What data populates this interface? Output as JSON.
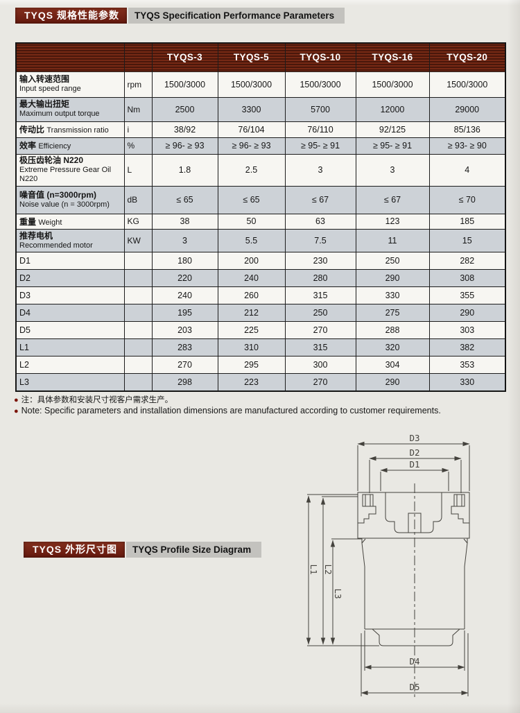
{
  "colors": {
    "accent_red": "#7c2415",
    "header_maroon": "#67200f",
    "row_shade": "#cdd2d7",
    "row_plain": "#f7f6f2",
    "title_gray": "#c3c2be",
    "paper": "#e9e8e3",
    "note_bullet_red": "#7c150b"
  },
  "section1": {
    "title_zh": "TYQS 规格性能参数",
    "title_en": "TYQS Specification Performance Parameters"
  },
  "section2": {
    "title_zh": "TYQS 外形尺寸图",
    "title_en": "TYQS Profile Size Diagram"
  },
  "notes": {
    "bullet": "●",
    "zh": "注：具体参数和安装尺寸视客户需求生产。",
    "en": "Note: Specific parameters and installation dimensions are manufactured according to customer requirements."
  },
  "table": {
    "columns": [
      "TYQS-3",
      "TYQS-5",
      "TYQS-10",
      "TYQS-16",
      "TYQS-20"
    ],
    "rows": [
      {
        "label_zh": "输入转速范围",
        "label_en": "Input speed range",
        "unit": "rpm",
        "layout": "stack",
        "shade": false,
        "values": [
          "1500/3000",
          "1500/3000",
          "1500/3000",
          "1500/3000",
          "1500/3000"
        ]
      },
      {
        "label_zh": "最大输出扭矩",
        "label_en": "Maximum output torque",
        "unit": "Nm",
        "layout": "stack",
        "shade": true,
        "values": [
          "2500",
          "3300",
          "5700",
          "12000",
          "29000"
        ]
      },
      {
        "label_zh": "传动比",
        "label_en": "Transmission ratio",
        "unit": "i",
        "layout": "inline",
        "shade": false,
        "values": [
          "38/92",
          "76/104",
          "76/110",
          "92/125",
          "85/136"
        ]
      },
      {
        "label_zh": "效率",
        "label_en": "Efficiency",
        "unit": "%",
        "layout": "inline",
        "shade": true,
        "values": [
          "≥ 96- ≥ 93",
          "≥ 96- ≥ 93",
          "≥ 95- ≥ 91",
          "≥ 95- ≥ 91",
          "≥ 93- ≥ 90"
        ]
      },
      {
        "label_zh": "极压齿轮油 N220",
        "label_en": "Extreme Pressure Gear Oil N220",
        "unit": "L",
        "layout": "stack",
        "shade": false,
        "values": [
          "1.8",
          "2.5",
          "3",
          "3",
          "4"
        ]
      },
      {
        "label_zh": "噪音值 (n=3000rpm)",
        "label_en": "Noise value (n = 3000rpm)",
        "unit": "dB",
        "layout": "stack",
        "shade": true,
        "values": [
          "≤ 65",
          "≤ 65",
          "≤ 67",
          "≤ 67",
          "≤ 70"
        ]
      },
      {
        "label_zh": "重量",
        "label_en": "Weight",
        "unit": "KG",
        "layout": "inline",
        "shade": false,
        "values": [
          "38",
          "50",
          "63",
          "123",
          "185"
        ]
      },
      {
        "label_zh": "推荐电机",
        "label_en": "Recommended motor",
        "unit": "KW",
        "layout": "stack",
        "shade": true,
        "values": [
          "3",
          "5.5",
          "7.5",
          "11",
          "15"
        ]
      },
      {
        "label_zh": "D1",
        "label_en": "",
        "unit": "",
        "layout": "plain",
        "shade": false,
        "values": [
          "180",
          "200",
          "230",
          "250",
          "282"
        ]
      },
      {
        "label_zh": "D2",
        "label_en": "",
        "unit": "",
        "layout": "plain",
        "shade": true,
        "values": [
          "220",
          "240",
          "280",
          "290",
          "308"
        ]
      },
      {
        "label_zh": "D3",
        "label_en": "",
        "unit": "",
        "layout": "plain",
        "shade": false,
        "values": [
          "240",
          "260",
          "315",
          "330",
          "355"
        ]
      },
      {
        "label_zh": "D4",
        "label_en": "",
        "unit": "",
        "layout": "plain",
        "shade": true,
        "values": [
          "195",
          "212",
          "250",
          "275",
          "290"
        ]
      },
      {
        "label_zh": "D5",
        "label_en": "",
        "unit": "",
        "layout": "plain",
        "shade": false,
        "values": [
          "203",
          "225",
          "270",
          "288",
          "303"
        ]
      },
      {
        "label_zh": "L1",
        "label_en": "",
        "unit": "",
        "layout": "plain",
        "shade": true,
        "values": [
          "283",
          "310",
          "315",
          "320",
          "382"
        ]
      },
      {
        "label_zh": "L2",
        "label_en": "",
        "unit": "",
        "layout": "plain",
        "shade": false,
        "values": [
          "270",
          "295",
          "300",
          "304",
          "353"
        ]
      },
      {
        "label_zh": "L3",
        "label_en": "",
        "unit": "",
        "layout": "plain",
        "shade": true,
        "values": [
          "298",
          "223",
          "270",
          "290",
          "330"
        ]
      }
    ]
  },
  "diagram": {
    "labels": {
      "d1": "D1",
      "d2": "D2",
      "d3": "D3",
      "d4": "D4",
      "d5": "D5",
      "l1": "L1",
      "l2": "L2",
      "l3": "L3"
    }
  }
}
